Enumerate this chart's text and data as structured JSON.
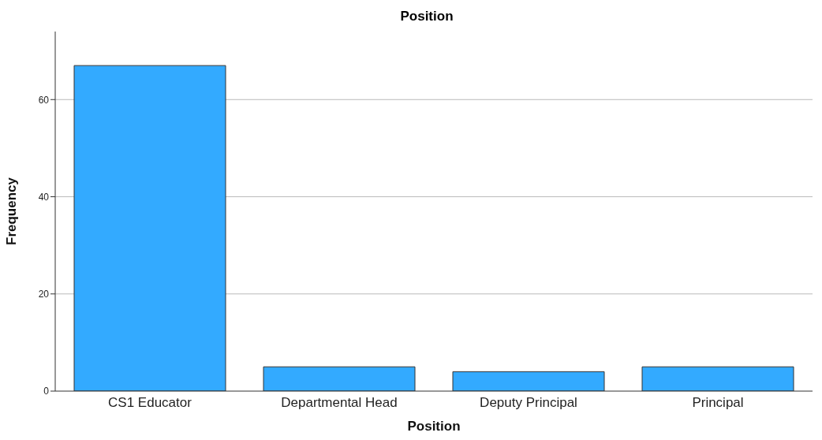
{
  "chart_data": {
    "type": "bar",
    "title": "Position",
    "xlabel": "Position",
    "ylabel": "Frequency",
    "categories": [
      "CS1 Educator",
      "Departmental Head",
      "Deputy Principal",
      "Principal"
    ],
    "values": [
      67,
      5,
      4,
      5
    ],
    "color": "#33aaff",
    "ylim": [
      0,
      74
    ],
    "yticks": [
      0,
      20,
      40,
      60
    ],
    "grid": "y"
  }
}
